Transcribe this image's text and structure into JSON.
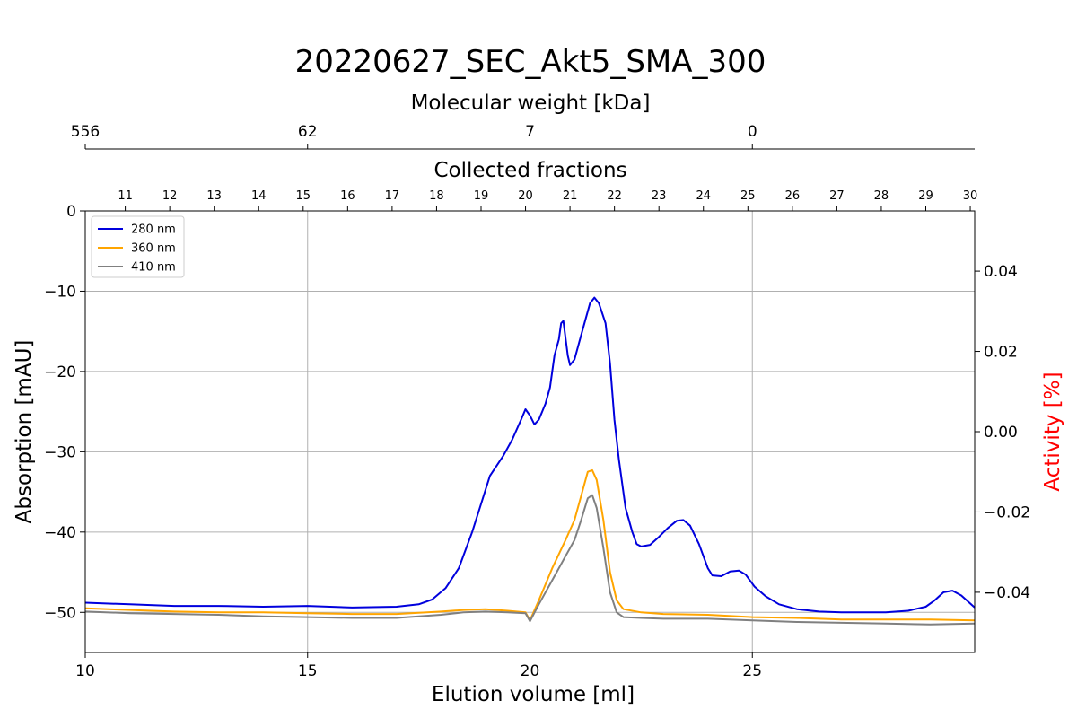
{
  "chart_data": {
    "type": "line",
    "title": "20220627_SEC_Akt5_SMA_300",
    "xlabel": "Elution volume [ml]",
    "ylabel": "Absorption [mAU]",
    "y2label": "Activity [%]",
    "y2color": "#ff0000",
    "xlim": [
      10,
      30
    ],
    "ylim": [
      -55,
      0
    ],
    "y2lim": [
      -0.055,
      0.055
    ],
    "xticks": [
      10,
      15,
      20,
      25
    ],
    "yticks": [
      0,
      -10,
      -20,
      -30,
      -40,
      -50
    ],
    "y2ticks": [
      0.04,
      0.02,
      0.0,
      -0.02,
      -0.04
    ],
    "y2ticklabels": [
      "0.04",
      "0.02",
      "0.00",
      "−0.02",
      "−0.04"
    ],
    "grid": true,
    "legend_position": "top-left",
    "top_axis_mw": {
      "label": "Molecular weight [kDa]",
      "ticks": [
        {
          "x": 10,
          "label": "556"
        },
        {
          "x": 15,
          "label": "62"
        },
        {
          "x": 20,
          "label": "7"
        },
        {
          "x": 25,
          "label": "0"
        }
      ]
    },
    "top_axis_fractions": {
      "label": "Collected fractions",
      "ticks": [
        {
          "x": 10.9,
          "label": "11"
        },
        {
          "x": 11.9,
          "label": "12"
        },
        {
          "x": 12.9,
          "label": "13"
        },
        {
          "x": 13.9,
          "label": "14"
        },
        {
          "x": 14.9,
          "label": "15"
        },
        {
          "x": 15.9,
          "label": "16"
        },
        {
          "x": 16.9,
          "label": "17"
        },
        {
          "x": 17.9,
          "label": "18"
        },
        {
          "x": 18.9,
          "label": "19"
        },
        {
          "x": 19.9,
          "label": "20"
        },
        {
          "x": 20.9,
          "label": "21"
        },
        {
          "x": 21.9,
          "label": "22"
        },
        {
          "x": 22.9,
          "label": "23"
        },
        {
          "x": 23.9,
          "label": "24"
        },
        {
          "x": 24.9,
          "label": "25"
        },
        {
          "x": 25.9,
          "label": "26"
        },
        {
          "x": 26.9,
          "label": "27"
        },
        {
          "x": 27.9,
          "label": "28"
        },
        {
          "x": 28.9,
          "label": "29"
        },
        {
          "x": 29.9,
          "label": "30"
        }
      ]
    },
    "series": [
      {
        "name": "280 nm",
        "color": "#0000dd",
        "points": [
          [
            10,
            -48.8
          ],
          [
            11,
            -49.0
          ],
          [
            12,
            -49.2
          ],
          [
            13,
            -49.2
          ],
          [
            14,
            -49.3
          ],
          [
            15,
            -49.2
          ],
          [
            16,
            -49.4
          ],
          [
            17,
            -49.3
          ],
          [
            17.5,
            -49.0
          ],
          [
            17.8,
            -48.4
          ],
          [
            18.1,
            -47.0
          ],
          [
            18.4,
            -44.5
          ],
          [
            18.7,
            -40.0
          ],
          [
            18.9,
            -36.5
          ],
          [
            19.1,
            -33.0
          ],
          [
            19.4,
            -30.5
          ],
          [
            19.6,
            -28.5
          ],
          [
            19.8,
            -26.0
          ],
          [
            19.9,
            -24.7
          ],
          [
            20.0,
            -25.5
          ],
          [
            20.1,
            -26.6
          ],
          [
            20.2,
            -26.0
          ],
          [
            20.35,
            -24.0
          ],
          [
            20.45,
            -22.0
          ],
          [
            20.55,
            -18.0
          ],
          [
            20.65,
            -16.0
          ],
          [
            20.7,
            -14.0
          ],
          [
            20.75,
            -13.7
          ],
          [
            20.85,
            -18.0
          ],
          [
            20.9,
            -19.2
          ],
          [
            21.0,
            -18.5
          ],
          [
            21.1,
            -16.5
          ],
          [
            21.25,
            -13.5
          ],
          [
            21.35,
            -11.5
          ],
          [
            21.45,
            -10.8
          ],
          [
            21.55,
            -11.5
          ],
          [
            21.7,
            -14.0
          ],
          [
            21.8,
            -19.0
          ],
          [
            21.9,
            -26.0
          ],
          [
            22.0,
            -31.0
          ],
          [
            22.15,
            -37.0
          ],
          [
            22.3,
            -40.0
          ],
          [
            22.4,
            -41.5
          ],
          [
            22.5,
            -41.8
          ],
          [
            22.7,
            -41.6
          ],
          [
            22.9,
            -40.6
          ],
          [
            23.1,
            -39.5
          ],
          [
            23.3,
            -38.6
          ],
          [
            23.45,
            -38.5
          ],
          [
            23.6,
            -39.2
          ],
          [
            23.8,
            -41.5
          ],
          [
            24.0,
            -44.5
          ],
          [
            24.1,
            -45.4
          ],
          [
            24.3,
            -45.5
          ],
          [
            24.5,
            -44.9
          ],
          [
            24.7,
            -44.8
          ],
          [
            24.85,
            -45.3
          ],
          [
            25.05,
            -46.8
          ],
          [
            25.3,
            -48.0
          ],
          [
            25.6,
            -49.0
          ],
          [
            26.0,
            -49.6
          ],
          [
            26.5,
            -49.9
          ],
          [
            27.0,
            -50.0
          ],
          [
            27.5,
            -50.0
          ],
          [
            28.0,
            -50.0
          ],
          [
            28.5,
            -49.8
          ],
          [
            28.9,
            -49.3
          ],
          [
            29.1,
            -48.5
          ],
          [
            29.3,
            -47.5
          ],
          [
            29.5,
            -47.3
          ],
          [
            29.7,
            -47.9
          ],
          [
            30.0,
            -49.4
          ]
        ]
      },
      {
        "name": "360 nm",
        "color": "#ffa500",
        "points": [
          [
            10,
            -49.5
          ],
          [
            11,
            -49.7
          ],
          [
            12,
            -49.9
          ],
          [
            13,
            -50.0
          ],
          [
            14,
            -50.0
          ],
          [
            15,
            -50.1
          ],
          [
            16,
            -50.2
          ],
          [
            17,
            -50.2
          ],
          [
            18,
            -49.9
          ],
          [
            18.5,
            -49.7
          ],
          [
            19.0,
            -49.6
          ],
          [
            19.5,
            -49.8
          ],
          [
            19.9,
            -50.0
          ],
          [
            20.0,
            -51.0
          ],
          [
            20.2,
            -48.5
          ],
          [
            20.5,
            -44.5
          ],
          [
            20.8,
            -41.0
          ],
          [
            21.0,
            -38.5
          ],
          [
            21.15,
            -35.5
          ],
          [
            21.3,
            -32.5
          ],
          [
            21.4,
            -32.3
          ],
          [
            21.5,
            -33.5
          ],
          [
            21.65,
            -38.5
          ],
          [
            21.8,
            -45.0
          ],
          [
            21.95,
            -48.5
          ],
          [
            22.1,
            -49.6
          ],
          [
            22.5,
            -50.0
          ],
          [
            23.0,
            -50.2
          ],
          [
            24.0,
            -50.3
          ],
          [
            25.0,
            -50.6
          ],
          [
            26.0,
            -50.7
          ],
          [
            27.0,
            -50.9
          ],
          [
            28.0,
            -50.9
          ],
          [
            29.0,
            -50.9
          ],
          [
            30.0,
            -51.0
          ]
        ]
      },
      {
        "name": "410 nm",
        "color": "#808080",
        "points": [
          [
            10,
            -49.9
          ],
          [
            11,
            -50.1
          ],
          [
            12,
            -50.2
          ],
          [
            13,
            -50.3
          ],
          [
            14,
            -50.5
          ],
          [
            15,
            -50.6
          ],
          [
            16,
            -50.7
          ],
          [
            17,
            -50.7
          ],
          [
            18,
            -50.3
          ],
          [
            18.5,
            -50.0
          ],
          [
            19.0,
            -49.9
          ],
          [
            19.5,
            -50.0
          ],
          [
            19.9,
            -50.1
          ],
          [
            20.0,
            -51.1
          ],
          [
            20.2,
            -49.0
          ],
          [
            20.5,
            -46.0
          ],
          [
            20.8,
            -43.0
          ],
          [
            21.0,
            -41.0
          ],
          [
            21.15,
            -38.5
          ],
          [
            21.3,
            -35.8
          ],
          [
            21.4,
            -35.4
          ],
          [
            21.5,
            -37.0
          ],
          [
            21.65,
            -42.0
          ],
          [
            21.8,
            -47.5
          ],
          [
            21.95,
            -50.0
          ],
          [
            22.1,
            -50.6
          ],
          [
            22.5,
            -50.7
          ],
          [
            23.0,
            -50.8
          ],
          [
            24.0,
            -50.8
          ],
          [
            25.0,
            -51.0
          ],
          [
            26.0,
            -51.2
          ],
          [
            27.0,
            -51.3
          ],
          [
            28.0,
            -51.4
          ],
          [
            29.0,
            -51.5
          ],
          [
            30.0,
            -51.4
          ]
        ]
      }
    ]
  }
}
